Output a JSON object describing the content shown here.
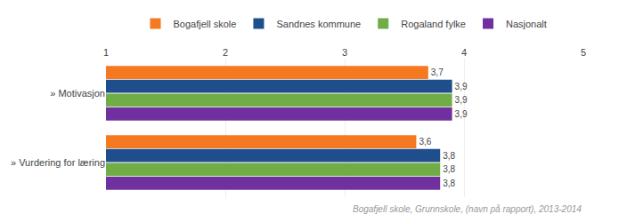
{
  "chart_data": {
    "type": "bar",
    "orientation": "horizontal",
    "categories": [
      "» Motivasjon",
      "» Vurdering for læring"
    ],
    "series": [
      {
        "name": "Bogafjell skole",
        "color": "#F47920",
        "values": [
          3.7,
          3.6
        ],
        "value_labels": [
          "3,7",
          "3,6"
        ]
      },
      {
        "name": "Sandnes kommune",
        "color": "#1F4E8C",
        "values": [
          3.9,
          3.8
        ],
        "value_labels": [
          "3,9",
          "3,8"
        ]
      },
      {
        "name": "Rogaland fylke",
        "color": "#70AD47",
        "values": [
          3.9,
          3.8
        ],
        "value_labels": [
          "3,9",
          "3,8"
        ]
      },
      {
        "name": "Nasjonalt",
        "color": "#7030A0",
        "values": [
          3.9,
          3.8
        ],
        "value_labels": [
          "3,9",
          "3,8"
        ]
      }
    ],
    "xlim": [
      1,
      5
    ],
    "xticks": [
      1,
      2,
      3,
      4,
      5
    ],
    "grid": true,
    "legend": "top",
    "data_labels": true,
    "annotations": [
      "Bogafjell skole, Grunnskole, (navn på rapport), 2013-2014"
    ]
  }
}
